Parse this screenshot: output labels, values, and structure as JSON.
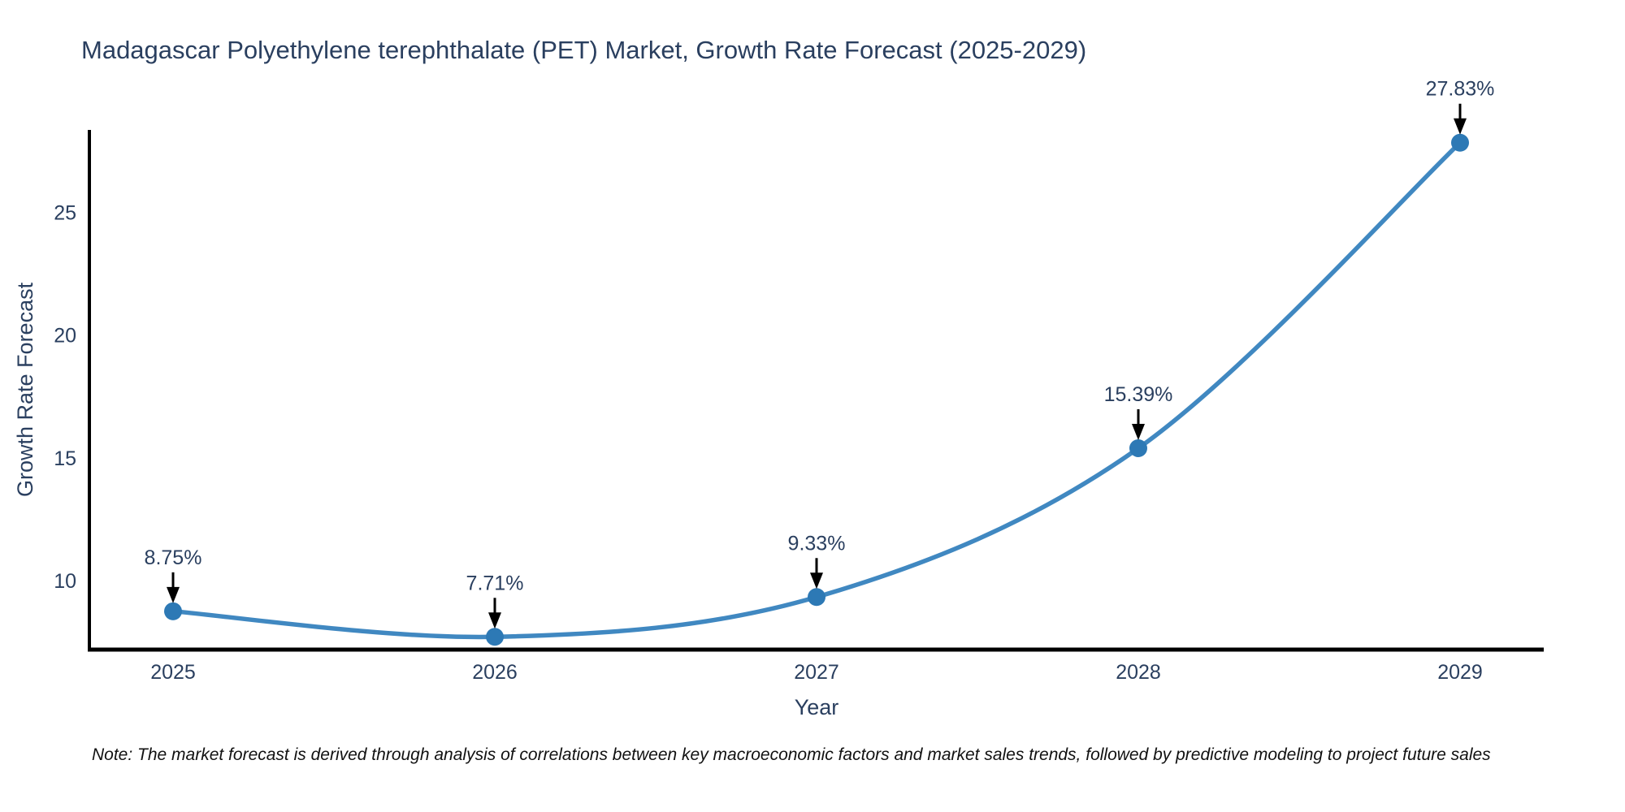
{
  "chart_data": {
    "type": "line",
    "title": "Madagascar Polyethylene terephthalate (PET) Market, Growth Rate Forecast (2025-2029)",
    "xlabel": "Year",
    "ylabel": "Growth Rate Forecast",
    "categories": [
      "2025",
      "2026",
      "2027",
      "2028",
      "2029"
    ],
    "values": [
      8.75,
      7.71,
      9.33,
      15.39,
      27.83
    ],
    "point_labels": [
      "8.75%",
      "7.71%",
      "9.33%",
      "15.39%",
      "27.83%"
    ],
    "yticks": [
      10,
      15,
      20,
      25
    ],
    "ylim": [
      7.19,
      28.35
    ],
    "line_shape": "spline",
    "grid": false,
    "legend_position": "none",
    "colors": {
      "line": "#4088c1",
      "marker": "#2d79b5",
      "axis": "#000000",
      "text": "#2a3f5f",
      "annotation_arrow": "#000000",
      "note_text": "#111111"
    }
  },
  "note": "Note: The market forecast is derived through analysis of correlations between key macroeconomic factors and market sales trends, followed by predictive modeling to project future sales"
}
